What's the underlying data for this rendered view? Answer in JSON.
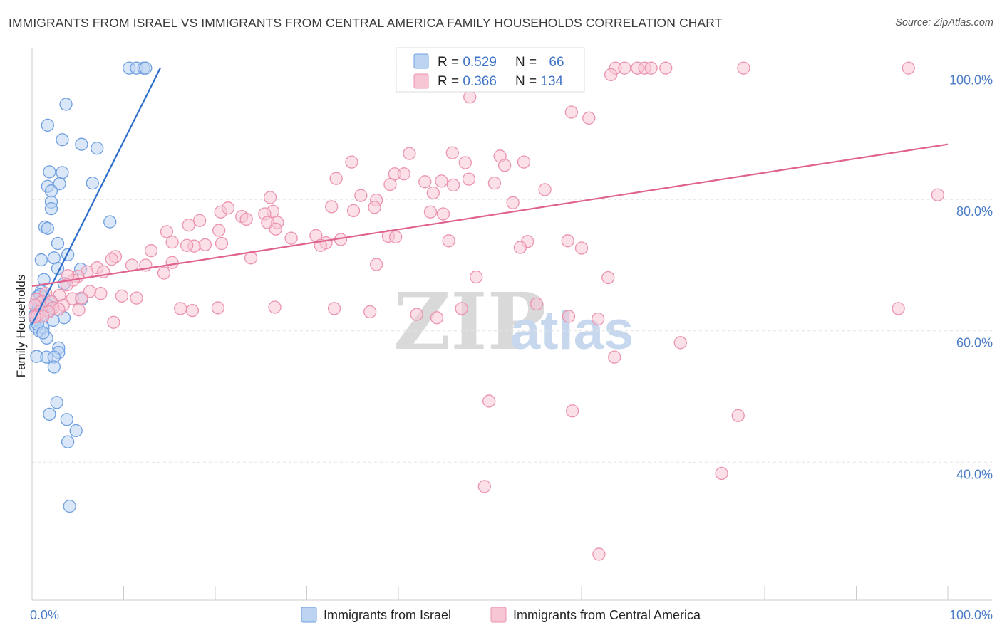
{
  "header": {
    "title": "IMMIGRANTS FROM ISRAEL VS IMMIGRANTS FROM CENTRAL AMERICA FAMILY HOUSEHOLDS CORRELATION CHART",
    "source": "Source: ZipAtlas.com"
  },
  "watermark": {
    "zip": "ZIP",
    "atlas": "atlas"
  },
  "chart_data": {
    "type": "scatter",
    "title": "IMMIGRANTS FROM ISRAEL VS IMMIGRANTS FROM CENTRAL AMERICA FAMILY HOUSEHOLDS CORRELATION CHART",
    "xlabel": "",
    "ylabel": "Family Households",
    "xlim": [
      0,
      100
    ],
    "ylim": [
      19,
      103
    ],
    "x_tick_labels": [
      {
        "value": 0,
        "label": "0.0%"
      },
      {
        "value": 100,
        "label": "100.0%"
      }
    ],
    "y_tick_labels": [
      {
        "value": 100,
        "label": "100.0%"
      },
      {
        "value": 80,
        "label": "80.0%"
      },
      {
        "value": 60,
        "label": "60.0%"
      },
      {
        "value": 40,
        "label": "40.0%"
      }
    ],
    "legend_position": "top-center",
    "grid": true,
    "stats": [
      {
        "r_label": "R = ",
        "r": "0.529",
        "n_label": "N = ",
        "n": "66"
      },
      {
        "r_label": "R = ",
        "r": "0.366",
        "n_label": "N = ",
        "n": "134"
      }
    ],
    "series": [
      {
        "name": "Immigrants from Israel",
        "color": "#6f9fe0",
        "fill": "#bcd3f2",
        "trend_color": "#2f6fcc",
        "trend": {
          "x": [
            0.0,
            14.0
          ],
          "y": [
            61.0,
            100.0
          ]
        },
        "points": [
          [
            10.6,
            100
          ],
          [
            11.4,
            100
          ],
          [
            12.2,
            100
          ],
          [
            12.4,
            100
          ],
          [
            3.7,
            94.5
          ],
          [
            1.7,
            91.3
          ],
          [
            5.4,
            88.4
          ],
          [
            3.3,
            89.1
          ],
          [
            7.1,
            87.8
          ],
          [
            1.9,
            84.2
          ],
          [
            3.3,
            84.1
          ],
          [
            1.7,
            82
          ],
          [
            3.0,
            82.4
          ],
          [
            6.6,
            82.5
          ],
          [
            2.1,
            81.3
          ],
          [
            2.1,
            79.6
          ],
          [
            2.1,
            78.6
          ],
          [
            8.5,
            76.6
          ],
          [
            1.4,
            75.8
          ],
          [
            1.7,
            75.6
          ],
          [
            2.8,
            73.3
          ],
          [
            3.9,
            71.6
          ],
          [
            2.4,
            71.1
          ],
          [
            1.0,
            70.8
          ],
          [
            2.8,
            69.5
          ],
          [
            5.3,
            69.4
          ],
          [
            1.3,
            67.8
          ],
          [
            3.5,
            67.2
          ],
          [
            1.0,
            66.0
          ],
          [
            0.6,
            65.2
          ],
          [
            1.3,
            65.1
          ],
          [
            2.1,
            64.5
          ],
          [
            1.5,
            64.0
          ],
          [
            0.8,
            63.7
          ],
          [
            0.5,
            63.9
          ],
          [
            1.0,
            63.3
          ],
          [
            2.0,
            63.1
          ],
          [
            0.6,
            62.8
          ],
          [
            0.9,
            62.2
          ],
          [
            0.4,
            61.7
          ],
          [
            3.5,
            62.0
          ],
          [
            2.3,
            61.6
          ],
          [
            1.2,
            60.5
          ],
          [
            0.4,
            60.6
          ],
          [
            0.8,
            60.0
          ],
          [
            1.6,
            58.9
          ],
          [
            2.9,
            57.4
          ],
          [
            2.9,
            56.7
          ],
          [
            0.5,
            56.1
          ],
          [
            1.6,
            56.0
          ],
          [
            2.4,
            56.0
          ],
          [
            2.4,
            54.5
          ],
          [
            5.4,
            64.8
          ],
          [
            2.7,
            49.1
          ],
          [
            1.9,
            47.3
          ],
          [
            3.8,
            46.5
          ],
          [
            4.8,
            44.8
          ],
          [
            3.9,
            43.1
          ],
          [
            4.1,
            33.3
          ],
          [
            0.7,
            63.5
          ],
          [
            1.1,
            64.6
          ],
          [
            0.3,
            62.4
          ],
          [
            0.6,
            61.0
          ],
          [
            1.8,
            63.8
          ],
          [
            1.2,
            59.7
          ],
          [
            0.9,
            65.5
          ]
        ]
      },
      {
        "name": "Immigrants from Central America",
        "color": "#ec93af",
        "fill": "#f7c6d5",
        "trend_color": "#e0638f",
        "trend": {
          "x": [
            0.0,
            100.0
          ],
          "y": [
            66.8,
            88.4
          ]
        },
        "points": [
          [
            55.9,
            100
          ],
          [
            56.7,
            100
          ],
          [
            57.9,
            100
          ],
          [
            63.7,
            100
          ],
          [
            64.7,
            100
          ],
          [
            66.1,
            100
          ],
          [
            66.9,
            100
          ],
          [
            67.6,
            100
          ],
          [
            69.2,
            100
          ],
          [
            77.7,
            100
          ],
          [
            95.7,
            100
          ],
          [
            63.2,
            99.0
          ],
          [
            47.8,
            95.6
          ],
          [
            58.9,
            93.3
          ],
          [
            60.8,
            92.4
          ],
          [
            41.2,
            87
          ],
          [
            45.9,
            87.1
          ],
          [
            51.1,
            86.6
          ],
          [
            34.9,
            85.7
          ],
          [
            47.3,
            85.6
          ],
          [
            51.6,
            85.2
          ],
          [
            53.7,
            85.7
          ],
          [
            39.6,
            83.9
          ],
          [
            40.6,
            83.9
          ],
          [
            33.2,
            83.2
          ],
          [
            47.7,
            83.1
          ],
          [
            42.9,
            82.7
          ],
          [
            44.7,
            82.8
          ],
          [
            50.5,
            82.5
          ],
          [
            46.0,
            82.2
          ],
          [
            39.1,
            82.3
          ],
          [
            56.0,
            81.5
          ],
          [
            43.8,
            81.0
          ],
          [
            35.9,
            80.6
          ],
          [
            37.6,
            79.9
          ],
          [
            26.0,
            80.3
          ],
          [
            32.7,
            78.9
          ],
          [
            37.4,
            78.8
          ],
          [
            26.3,
            78.2
          ],
          [
            35.1,
            78.3
          ],
          [
            52.5,
            79.5
          ],
          [
            43.5,
            78.1
          ],
          [
            44.9,
            77.8
          ],
          [
            25.4,
            77.8
          ],
          [
            22.9,
            77.4
          ],
          [
            20.6,
            78.1
          ],
          [
            21.4,
            78.7
          ],
          [
            23.4,
            77.0
          ],
          [
            25.7,
            76.5
          ],
          [
            26.8,
            76.5
          ],
          [
            18.3,
            76.8
          ],
          [
            17.1,
            76.1
          ],
          [
            14.7,
            75.1
          ],
          [
            26.6,
            75.5
          ],
          [
            20.4,
            75.3
          ],
          [
            28.3,
            74.1
          ],
          [
            31.0,
            74.5
          ],
          [
            38.9,
            74.4
          ],
          [
            33.7,
            73.9
          ],
          [
            39.7,
            74.3
          ],
          [
            32.1,
            73.4
          ],
          [
            15.3,
            73.5
          ],
          [
            18.9,
            73.1
          ],
          [
            31.5,
            73.0
          ],
          [
            17.7,
            72.9
          ],
          [
            20.7,
            73.3
          ],
          [
            45.5,
            73.7
          ],
          [
            54.1,
            73.6
          ],
          [
            58.5,
            73.7
          ],
          [
            53.3,
            72.7
          ],
          [
            60.0,
            72.6
          ],
          [
            13.0,
            72.2
          ],
          [
            16.9,
            73.0
          ],
          [
            23.9,
            71.1
          ],
          [
            9.1,
            71.3
          ],
          [
            8.7,
            70.9
          ],
          [
            15.3,
            70.4
          ],
          [
            10.9,
            70.0
          ],
          [
            7.1,
            69.6
          ],
          [
            7.8,
            69.0
          ],
          [
            6.0,
            69.0
          ],
          [
            12.4,
            70.0
          ],
          [
            14.4,
            68.8
          ],
          [
            5.0,
            68.3
          ],
          [
            4.5,
            67.7
          ],
          [
            3.9,
            68.4
          ],
          [
            3.8,
            67.0
          ],
          [
            37.6,
            70.1
          ],
          [
            48.5,
            68.2
          ],
          [
            62.9,
            68.1
          ],
          [
            6.3,
            66.0
          ],
          [
            7.5,
            65.7
          ],
          [
            9.8,
            65.3
          ],
          [
            11.4,
            65.0
          ],
          [
            1.5,
            65.7
          ],
          [
            3.0,
            65.4
          ],
          [
            4.4,
            64.9
          ],
          [
            5.4,
            65.0
          ],
          [
            0.5,
            64.8
          ],
          [
            1.1,
            64.4
          ],
          [
            2.1,
            64.4
          ],
          [
            3.4,
            63.9
          ],
          [
            0.3,
            63.9
          ],
          [
            2.3,
            63.5
          ],
          [
            2.9,
            63.3
          ],
          [
            5.1,
            63.2
          ],
          [
            0.9,
            63.0
          ],
          [
            1.8,
            62.9
          ],
          [
            0.6,
            62.4
          ],
          [
            1.2,
            62.2
          ],
          [
            0.3,
            62.1
          ],
          [
            16.2,
            63.4
          ],
          [
            17.5,
            63.1
          ],
          [
            20.3,
            63.5
          ],
          [
            26.5,
            63.6
          ],
          [
            33.0,
            63.4
          ],
          [
            36.9,
            62.9
          ],
          [
            42.0,
            62.5
          ],
          [
            44.2,
            62.0
          ],
          [
            46.9,
            63.4
          ],
          [
            55.1,
            64.1
          ],
          [
            58.6,
            62.2
          ],
          [
            61.8,
            61.8
          ],
          [
            8.9,
            61.3
          ],
          [
            70.8,
            58.2
          ],
          [
            63.6,
            56.0
          ],
          [
            49.9,
            49.3
          ],
          [
            59.0,
            47.8
          ],
          [
            77.1,
            47.1
          ],
          [
            75.3,
            38.3
          ],
          [
            49.4,
            36.3
          ],
          [
            61.9,
            26.0
          ],
          [
            94.6,
            63.4
          ],
          [
            98.9,
            80.7
          ]
        ]
      }
    ]
  },
  "legend_bottom": [
    {
      "label": "Immigrants from Israel"
    },
    {
      "label": "Immigrants from Central America"
    }
  ]
}
